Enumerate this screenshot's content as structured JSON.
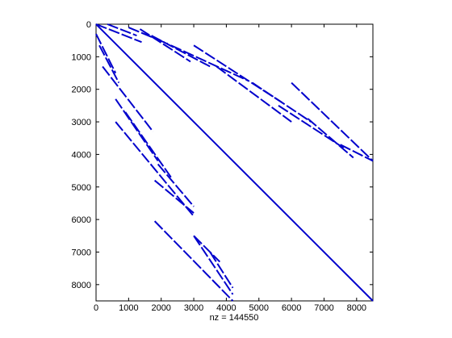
{
  "chart_data": {
    "type": "spy",
    "xlabel": "nz = 144550",
    "color": "#0000cc",
    "xlim": [
      0,
      8500
    ],
    "ylim": [
      0,
      8500
    ],
    "y_reversed": true,
    "xticks": [
      0,
      1000,
      2000,
      3000,
      4000,
      5000,
      6000,
      7000,
      8000
    ],
    "yticks": [
      0,
      1000,
      2000,
      3000,
      4000,
      5000,
      6000,
      7000,
      8000
    ],
    "segments": [
      {
        "x": [
          0,
          8500
        ],
        "y": [
          0,
          8500
        ]
      },
      {
        "x": [
          0,
          1400
        ],
        "y": [
          0,
          550
        ]
      },
      {
        "x": [
          350,
          1250
        ],
        "y": [
          0,
          350
        ]
      },
      {
        "x": [
          1000,
          2200
        ],
        "y": [
          100,
          600
        ]
      },
      {
        "x": [
          1350,
          2900
        ],
        "y": [
          150,
          1150
        ]
      },
      {
        "x": [
          1700,
          3500
        ],
        "y": [
          350,
          1300
        ]
      },
      {
        "x": [
          2300,
          4700
        ],
        "y": [
          650,
          1750
        ]
      },
      {
        "x": [
          3000,
          5700
        ],
        "y": [
          650,
          2400
        ]
      },
      {
        "x": [
          3700,
          6000
        ],
        "y": [
          1300,
          3000
        ]
      },
      {
        "x": [
          4800,
          6600
        ],
        "y": [
          1800,
          3000
        ]
      },
      {
        "x": [
          5600,
          7600
        ],
        "y": [
          2500,
          3800
        ]
      },
      {
        "x": [
          6000,
          8500
        ],
        "y": [
          1800,
          4200
        ]
      },
      {
        "x": [
          6500,
          7900
        ],
        "y": [
          2900,
          4100
        ]
      },
      {
        "x": [
          7500,
          8500
        ],
        "y": [
          3700,
          4200
        ]
      },
      {
        "x": [
          0,
          600
        ],
        "y": [
          300,
          1500
        ]
      },
      {
        "x": [
          100,
          700
        ],
        "y": [
          650,
          1800
        ]
      },
      {
        "x": [
          200,
          1750
        ],
        "y": [
          1300,
          3300
        ]
      },
      {
        "x": [
          600,
          1900
        ],
        "y": [
          2300,
          4200
        ]
      },
      {
        "x": [
          900,
          2300
        ],
        "y": [
          2700,
          4700
        ]
      },
      {
        "x": [
          600,
          3000
        ],
        "y": [
          3000,
          5900
        ]
      },
      {
        "x": [
          1800,
          3000
        ],
        "y": [
          4800,
          5800
        ]
      },
      {
        "x": [
          1900,
          3000
        ],
        "y": [
          4300,
          5600
        ]
      },
      {
        "x": [
          3000,
          3800
        ],
        "y": [
          6500,
          7300
        ]
      },
      {
        "x": [
          3000,
          4200
        ],
        "y": [
          6500,
          8300
        ]
      },
      {
        "x": [
          1800,
          4200
        ],
        "y": [
          6050,
          8500
        ]
      },
      {
        "x": [
          3500,
          4200
        ],
        "y": [
          7000,
          8100
        ]
      }
    ]
  }
}
